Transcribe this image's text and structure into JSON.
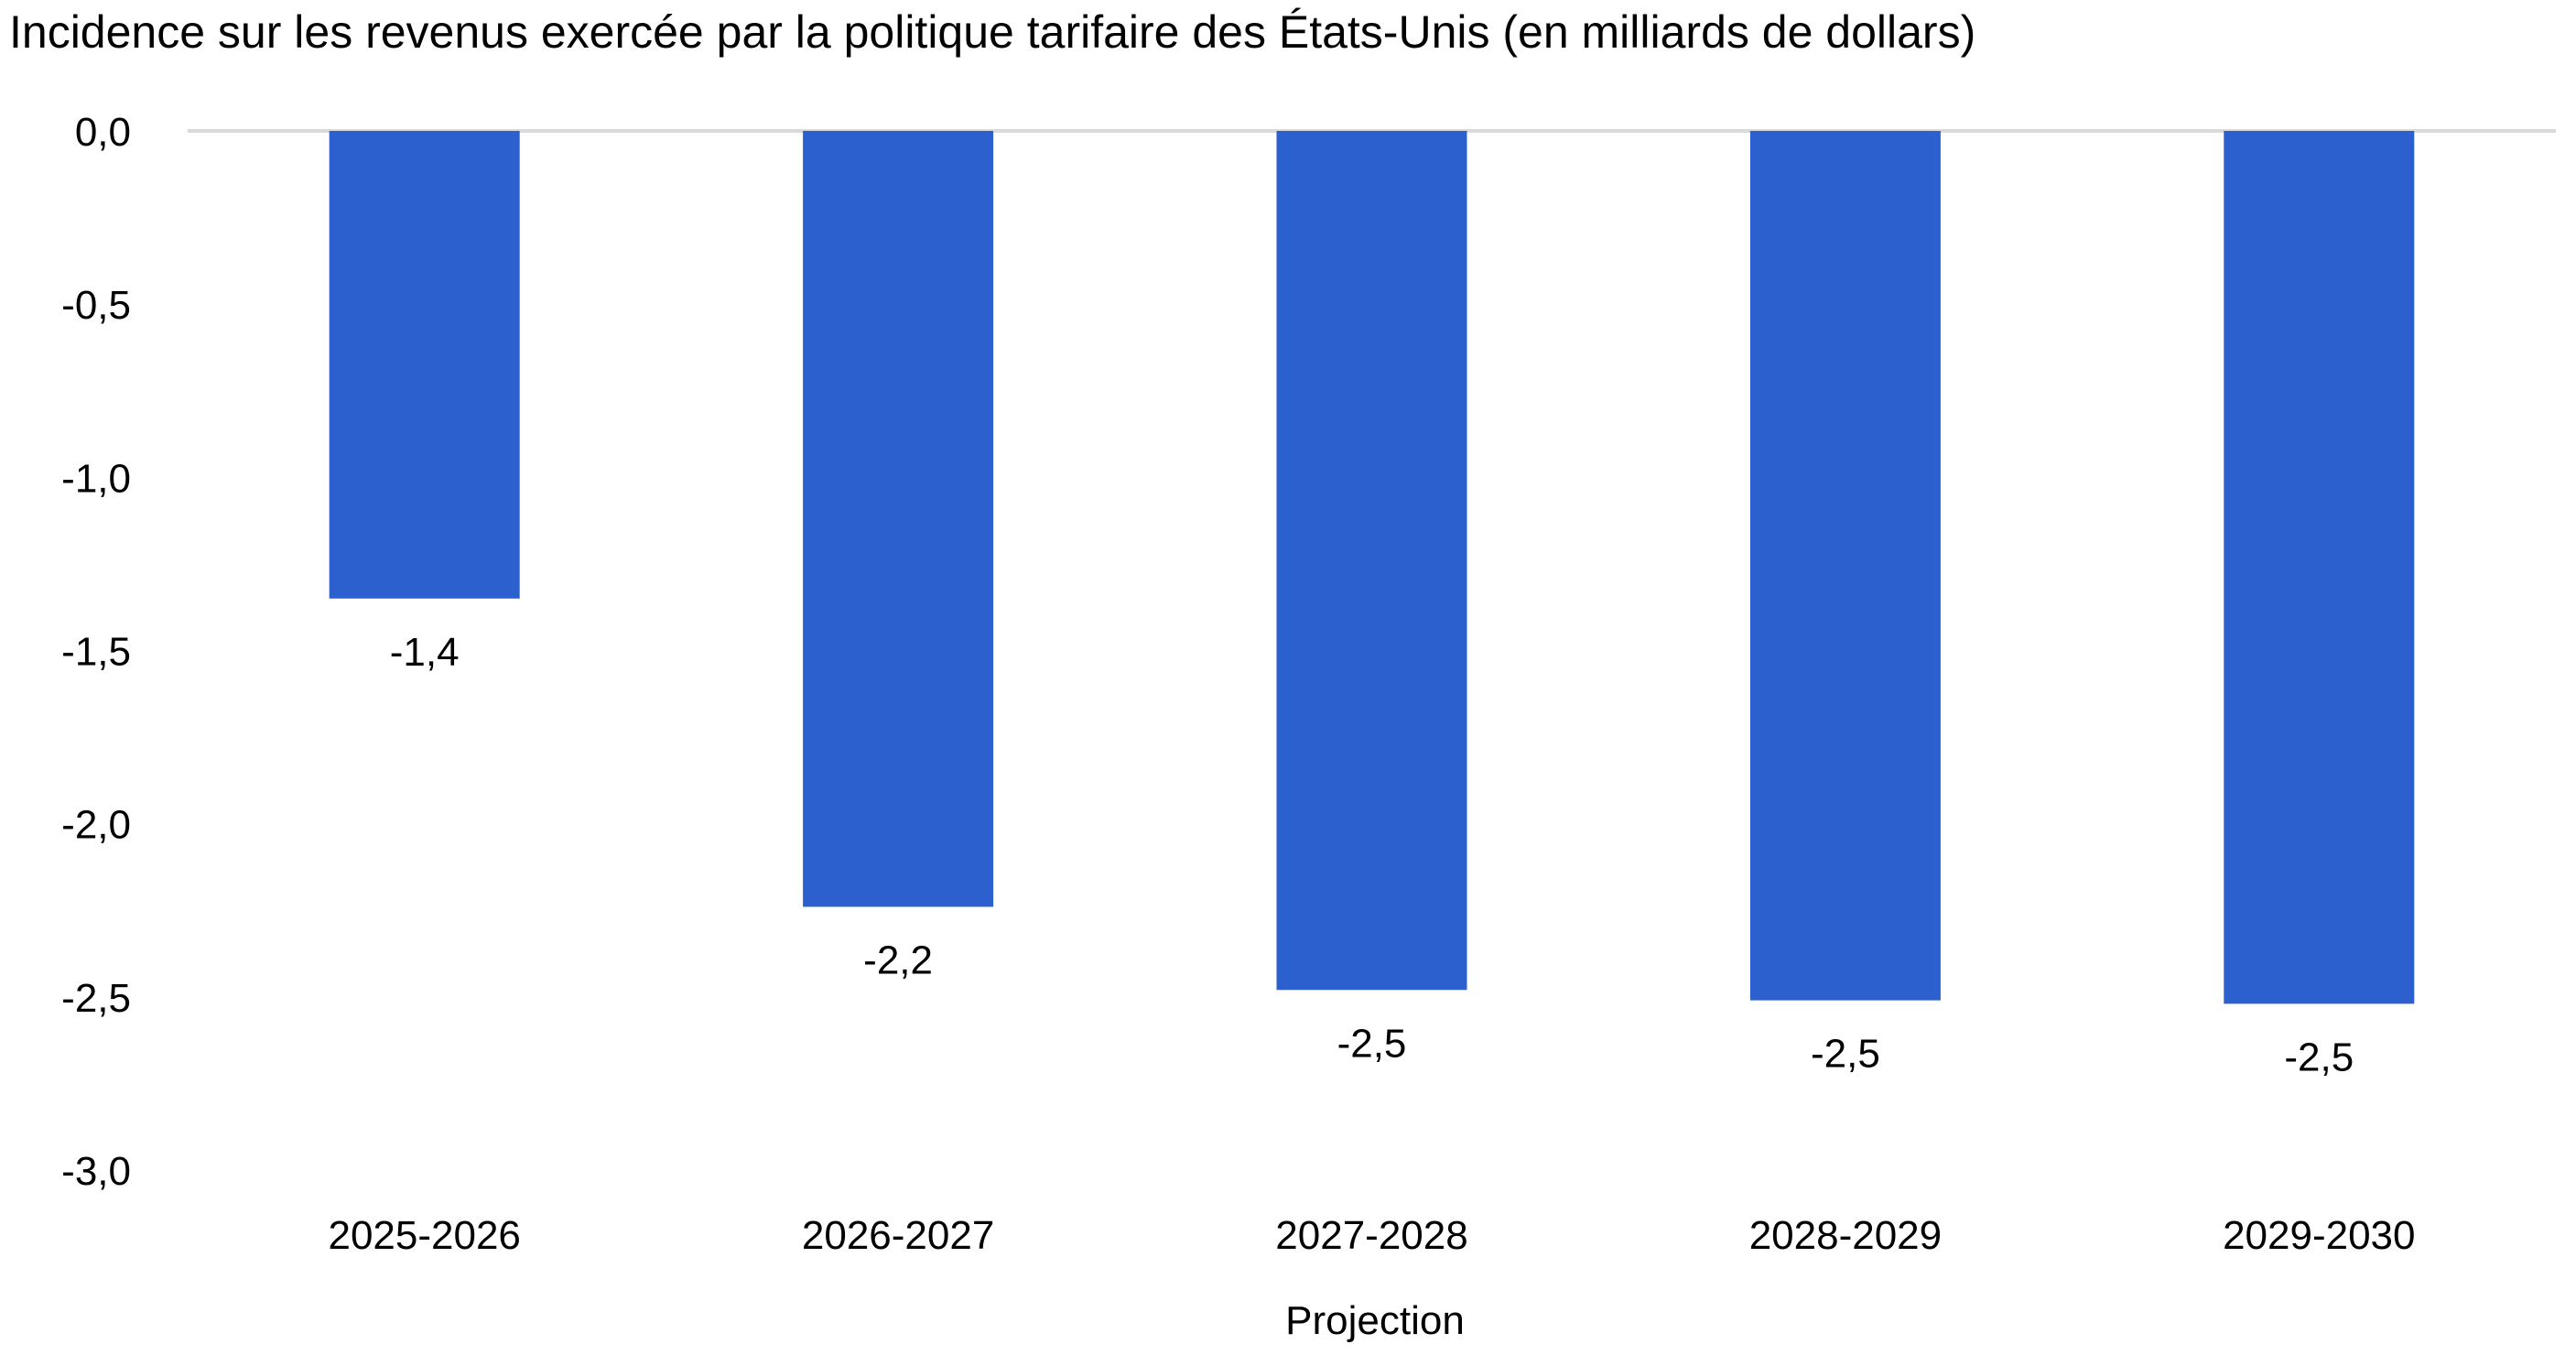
{
  "chart_data": {
    "type": "bar",
    "title": "Incidence sur les revenus exercée par la politique tarifaire des États-Unis (en milliards de dollars)",
    "xlabel": "Projection",
    "ylabel": "",
    "categories": [
      "2025-2026",
      "2026-2027",
      "2027-2028",
      "2028-2029",
      "2029-2030"
    ],
    "values": [
      -1.35,
      -2.24,
      -2.48,
      -2.51,
      -2.52
    ],
    "data_labels": [
      "-1,4",
      "-2,2",
      "-2,5",
      "-2,5",
      "-2,5"
    ],
    "ylim": [
      -3.0,
      0.0
    ],
    "yticks": [
      0.0,
      -0.5,
      -1.0,
      -1.5,
      -2.0,
      -2.5,
      -3.0
    ],
    "ytick_labels": [
      "0,0",
      "-0,5",
      "-1,0",
      "-1,5",
      "-2,0",
      "-2,5",
      "-3,0"
    ],
    "bar_color": "#2B60CE",
    "zero_line_color": "#D9D9D9",
    "grid": false,
    "legend": "none"
  }
}
